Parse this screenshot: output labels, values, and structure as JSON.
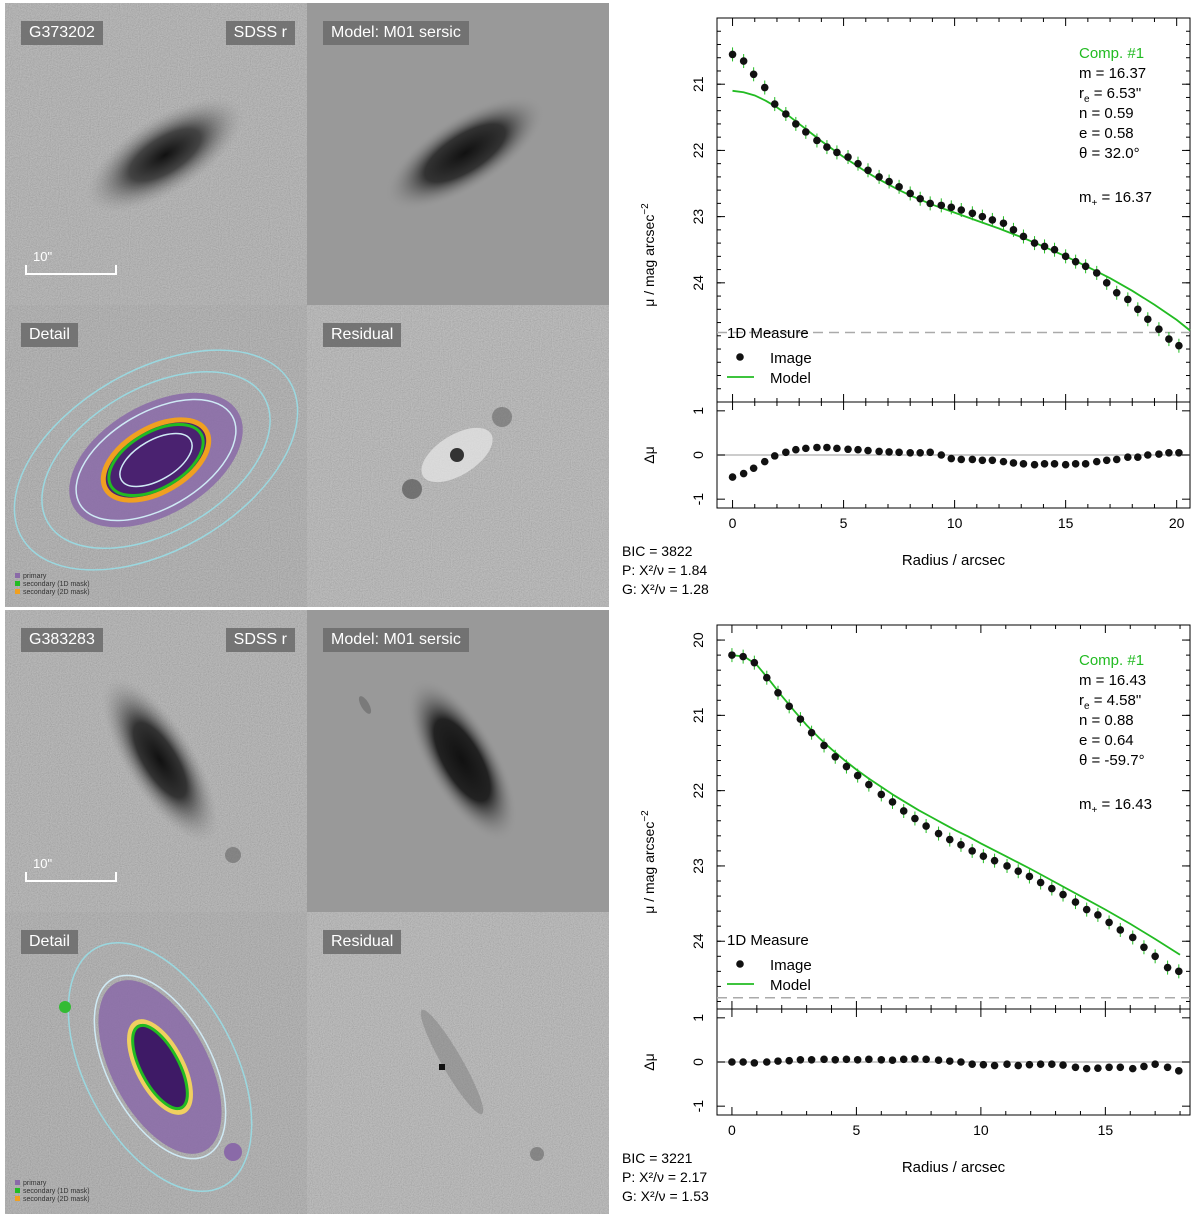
{
  "panels": [
    {
      "galaxy_id": "G373202",
      "band": "SDSS r",
      "model_label": "Model: M01 sersic",
      "detail_label": "Detail",
      "residual_label": "Residual",
      "scale_label": "10\"",
      "angle_deg": -32,
      "mask_legend": [
        "primary",
        "secondary (1D mask)",
        "secondary (2D mask)"
      ],
      "stats": {
        "bic": "BIC = 3822",
        "p": "P: X²/ν = 1.84",
        "g": "G: X²/ν = 1.28"
      },
      "chart_data": {
        "type": "scatter",
        "ylabel": "μ / mag arcsec",
        "ylabel_sup": "−2",
        "xlabel": "Radius / arcsec",
        "resid_ylabel": "Δμ",
        "xlim": [
          -0.7,
          20.6
        ],
        "ylim": [
          25.8,
          20.0
        ],
        "x_ticks": [
          0,
          5,
          10,
          15,
          20
        ],
        "y_ticks": [
          21,
          22,
          23,
          24
        ],
        "resid_ylim": [
          -1.2,
          1.2
        ],
        "resid_ticks": [
          -1,
          0,
          1
        ],
        "limit_line": 24.75,
        "legend": {
          "title": "1D Measure",
          "image": "Image",
          "model": "Model"
        },
        "annotation": {
          "comp": "Comp. #1",
          "m": "m = 16.37",
          "re_prefix": "r",
          "re_sub": "e",
          "re_val": " = 6.53\"",
          "n": "n = 0.59",
          "e": "e = 0.58",
          "theta": "θ = 32.0°",
          "mplus_prefix": "m",
          "mplus_sub": "+",
          "mplus_val": " = 16.37"
        },
        "series": [
          {
            "name": "Image",
            "x": [
              0,
              0.5,
              0.95,
              1.45,
              1.9,
              2.4,
              2.85,
              3.3,
              3.8,
              4.25,
              4.7,
              5.2,
              5.65,
              6.1,
              6.6,
              7.05,
              7.5,
              8.0,
              8.45,
              8.9,
              9.4,
              9.85,
              10.3,
              10.8,
              11.25,
              11.7,
              12.2,
              12.65,
              13.1,
              13.6,
              14.05,
              14.5,
              15.0,
              15.45,
              15.9,
              16.4,
              16.85,
              17.3,
              17.8,
              18.25,
              18.7,
              19.2,
              19.65,
              20.1
            ],
            "y": [
              20.55,
              20.65,
              20.85,
              21.05,
              21.3,
              21.45,
              21.6,
              21.72,
              21.85,
              21.95,
              22.03,
              22.1,
              22.2,
              22.3,
              22.4,
              22.47,
              22.55,
              22.65,
              22.73,
              22.8,
              22.83,
              22.86,
              22.9,
              22.95,
              23.0,
              23.05,
              23.1,
              23.2,
              23.3,
              23.4,
              23.45,
              23.5,
              23.6,
              23.68,
              23.75,
              23.85,
              24.0,
              24.15,
              24.25,
              24.4,
              24.55,
              24.7,
              24.85,
              24.95
            ]
          },
          {
            "name": "Model",
            "x": [
              0,
              0.5,
              1,
              1.5,
              2,
              2.5,
              3,
              3.5,
              4,
              4.5,
              5,
              5.5,
              6,
              6.5,
              7,
              7.5,
              8,
              8.5,
              9,
              9.5,
              10,
              11,
              12,
              13,
              14,
              15,
              16,
              17,
              18,
              19,
              20,
              20.6
            ],
            "y": [
              21.1,
              21.12,
              21.17,
              21.25,
              21.35,
              21.47,
              21.6,
              21.73,
              21.86,
              21.98,
              22.1,
              22.21,
              22.32,
              22.42,
              22.51,
              22.6,
              22.68,
              22.75,
              22.82,
              22.88,
              22.94,
              23.06,
              23.18,
              23.31,
              23.45,
              23.6,
              23.76,
              23.93,
              24.12,
              24.33,
              24.56,
              24.72
            ]
          }
        ],
        "residuals": {
          "x": [
            0,
            0.5,
            0.95,
            1.45,
            1.9,
            2.4,
            2.85,
            3.3,
            3.8,
            4.25,
            4.7,
            5.2,
            5.65,
            6.1,
            6.6,
            7.05,
            7.5,
            8.0,
            8.45,
            8.9,
            9.4,
            9.85,
            10.3,
            10.8,
            11.25,
            11.7,
            12.2,
            12.65,
            13.1,
            13.6,
            14.05,
            14.5,
            15.0,
            15.45,
            15.9,
            16.4,
            16.85,
            17.3,
            17.8,
            18.25,
            18.7,
            19.2,
            19.65,
            20.1
          ],
          "y": [
            -0.5,
            -0.42,
            -0.3,
            -0.15,
            -0.02,
            0.06,
            0.12,
            0.15,
            0.17,
            0.17,
            0.15,
            0.13,
            0.12,
            0.1,
            0.08,
            0.07,
            0.06,
            0.05,
            0.05,
            0.06,
            0.0,
            -0.08,
            -0.1,
            -0.1,
            -0.12,
            -0.12,
            -0.15,
            -0.18,
            -0.2,
            -0.22,
            -0.2,
            -0.2,
            -0.22,
            -0.2,
            -0.2,
            -0.15,
            -0.12,
            -0.1,
            -0.05,
            -0.05,
            0.0,
            0.02,
            0.05,
            0.05
          ]
        }
      }
    },
    {
      "galaxy_id": "G383283",
      "band": "SDSS r",
      "model_label": "Model: M01 sersic",
      "detail_label": "Detail",
      "residual_label": "Residual",
      "scale_label": "10\"",
      "angle_deg": 60,
      "mask_legend": [
        "primary",
        "secondary (1D mask)",
        "secondary (2D mask)"
      ],
      "stats": {
        "bic": "BIC = 3221",
        "p": "P: X²/ν = 2.17",
        "g": "G: X²/ν = 1.53"
      },
      "chart_data": {
        "type": "scatter",
        "ylabel": "μ / mag arcsec",
        "ylabel_sup": "−2",
        "xlabel": "Radius / arcsec",
        "resid_ylabel": "Δμ",
        "xlim": [
          -0.6,
          18.4
        ],
        "ylim": [
          24.9,
          19.8
        ],
        "x_ticks": [
          0,
          5,
          10,
          15
        ],
        "y_ticks": [
          20,
          21,
          22,
          23,
          24
        ],
        "resid_ylim": [
          -1.2,
          1.2
        ],
        "resid_ticks": [
          -1,
          0,
          1
        ],
        "limit_line": 24.75,
        "legend": {
          "title": "1D Measure",
          "image": "Image",
          "model": "Model"
        },
        "annotation": {
          "comp": "Comp. #1",
          "m": "m = 16.43",
          "re_prefix": "r",
          "re_sub": "e",
          "re_val": " = 4.58\"",
          "n": "n = 0.88",
          "e": "e = 0.64",
          "theta": "θ = -59.7°",
          "mplus_prefix": "m",
          "mplus_sub": "+",
          "mplus_val": " = 16.43"
        },
        "series": [
          {
            "name": "Image",
            "x": [
              0,
              0.45,
              0.9,
              1.4,
              1.85,
              2.3,
              2.75,
              3.2,
              3.7,
              4.15,
              4.6,
              5.05,
              5.5,
              6.0,
              6.45,
              6.9,
              7.35,
              7.8,
              8.3,
              8.75,
              9.2,
              9.65,
              10.1,
              10.55,
              11.05,
              11.5,
              11.95,
              12.4,
              12.85,
              13.3,
              13.8,
              14.25,
              14.7,
              15.15,
              15.6,
              16.1,
              16.55,
              17.0,
              17.5,
              17.95
            ],
            "y": [
              20.2,
              20.22,
              20.3,
              20.5,
              20.7,
              20.88,
              21.05,
              21.23,
              21.4,
              21.55,
              21.68,
              21.8,
              21.92,
              22.05,
              22.15,
              22.27,
              22.37,
              22.47,
              22.57,
              22.65,
              22.72,
              22.8,
              22.87,
              22.93,
              23.0,
              23.07,
              23.14,
              23.22,
              23.3,
              23.38,
              23.48,
              23.58,
              23.65,
              23.75,
              23.85,
              23.95,
              24.08,
              24.2,
              24.35,
              24.4
            ]
          },
          {
            "name": "Model",
            "x": [
              0,
              0.5,
              1,
              1.5,
              2,
              2.5,
              3,
              3.5,
              4,
              4.5,
              5,
              5.5,
              6,
              6.5,
              7,
              7.5,
              8,
              8.5,
              9,
              9.5,
              10,
              11,
              12,
              13,
              14,
              15,
              16,
              17,
              18
            ],
            "y": [
              20.2,
              20.22,
              20.33,
              20.53,
              20.74,
              20.94,
              21.13,
              21.3,
              21.45,
              21.59,
              21.72,
              21.84,
              21.95,
              22.06,
              22.16,
              22.26,
              22.35,
              22.44,
              22.53,
              22.61,
              22.7,
              22.87,
              23.04,
              23.22,
              23.4,
              23.58,
              23.77,
              23.97,
              24.18
            ]
          }
        ],
        "residuals": {
          "x": [
            0,
            0.45,
            0.9,
            1.4,
            1.85,
            2.3,
            2.75,
            3.2,
            3.7,
            4.15,
            4.6,
            5.05,
            5.5,
            6.0,
            6.45,
            6.9,
            7.35,
            7.8,
            8.3,
            8.75,
            9.2,
            9.65,
            10.1,
            10.55,
            11.05,
            11.5,
            11.95,
            12.4,
            12.85,
            13.3,
            13.8,
            14.25,
            14.7,
            15.15,
            15.6,
            16.1,
            16.55,
            17.0,
            17.5,
            17.95
          ],
          "y": [
            0.0,
            0.0,
            -0.02,
            0.0,
            0.02,
            0.03,
            0.05,
            0.05,
            0.06,
            0.05,
            0.06,
            0.05,
            0.06,
            0.05,
            0.04,
            0.06,
            0.07,
            0.06,
            0.04,
            0.02,
            0.0,
            -0.05,
            -0.06,
            -0.08,
            -0.05,
            -0.08,
            -0.06,
            -0.05,
            -0.05,
            -0.07,
            -0.12,
            -0.15,
            -0.14,
            -0.12,
            -0.12,
            -0.15,
            -0.1,
            -0.05,
            -0.12,
            -0.2
          ]
        }
      }
    }
  ]
}
